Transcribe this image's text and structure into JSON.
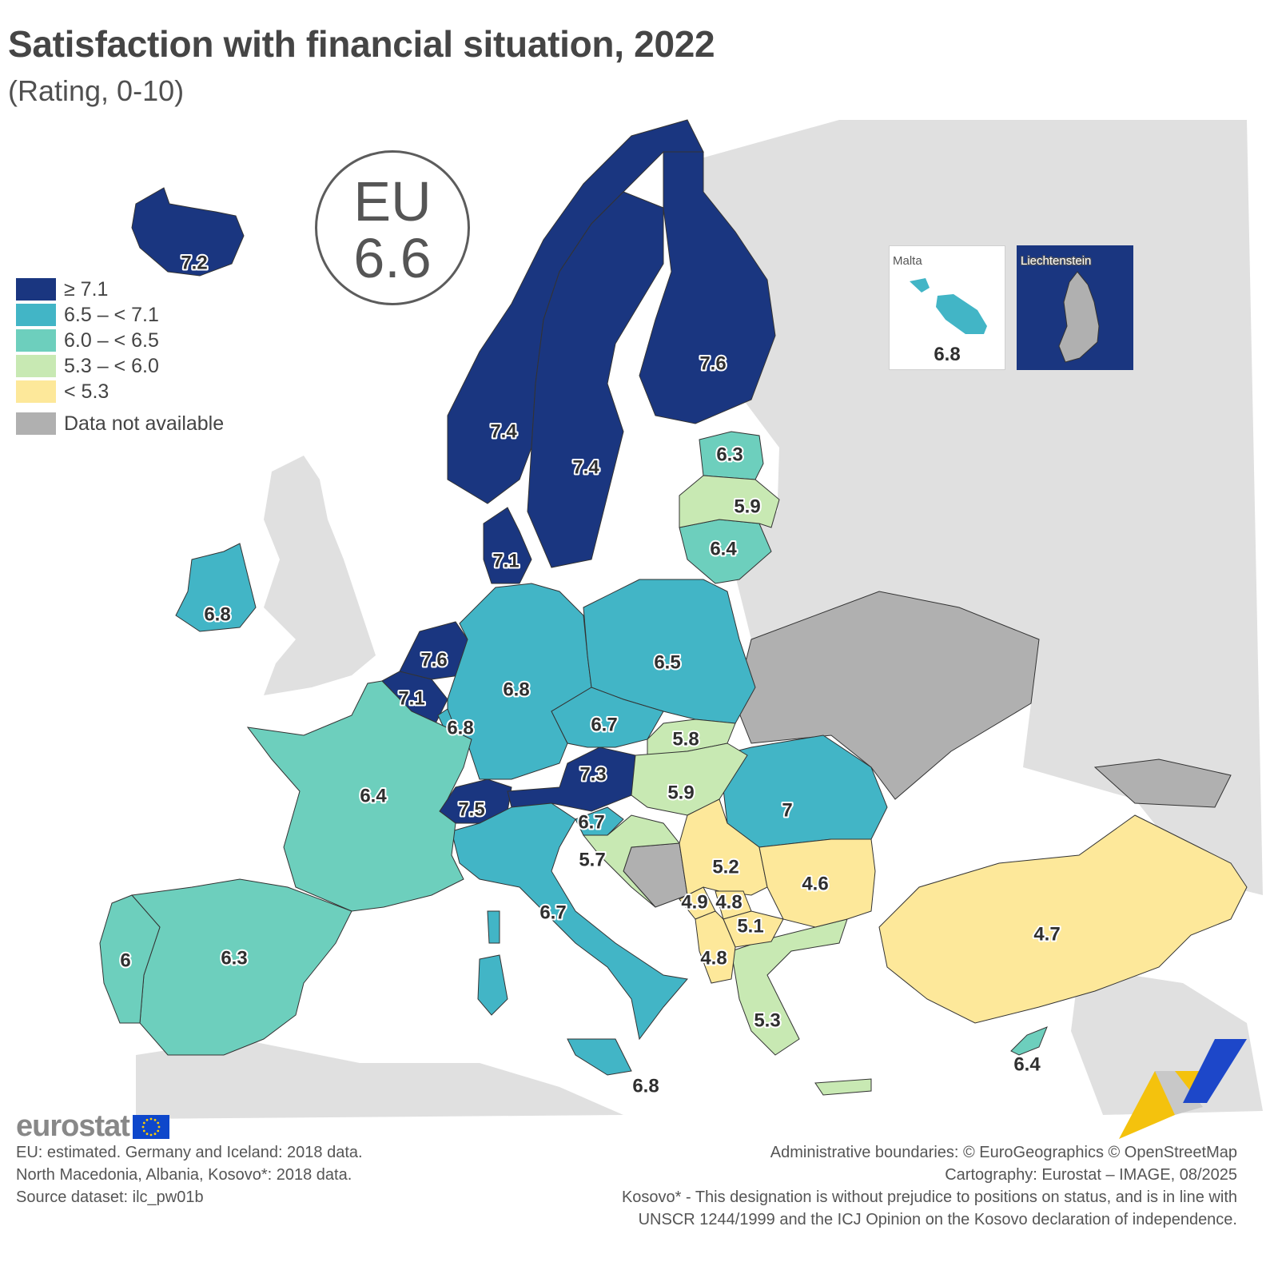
{
  "title": "Satisfaction with financial situation, 2022",
  "subtitle": "(Rating, 0-10)",
  "eu_badge": {
    "label": "EU",
    "value": "6.6"
  },
  "legend": [
    {
      "label": "≥ 7.1",
      "color": "#1a3680"
    },
    {
      "label": "6.5 – < 7.1",
      "color": "#42b5c6"
    },
    {
      "label": "6.0 – < 6.5",
      "color": "#6dcfbd"
    },
    {
      "label": "5.3 – < 6.0",
      "color": "#c8e9b3"
    },
    {
      "label": "< 5.3",
      "color": "#fde89a"
    },
    {
      "label": "Data not available",
      "color": "#b0b0b0"
    }
  ],
  "countries": [
    {
      "name": "Iceland",
      "value": "7.2"
    },
    {
      "name": "Norway",
      "value": "7.4"
    },
    {
      "name": "Sweden",
      "value": "7.4"
    },
    {
      "name": "Finland",
      "value": "7.6"
    },
    {
      "name": "Estonia",
      "value": "6.3"
    },
    {
      "name": "Latvia",
      "value": "5.9"
    },
    {
      "name": "Lithuania",
      "value": "6.4"
    },
    {
      "name": "Denmark",
      "value": "7.1"
    },
    {
      "name": "Ireland",
      "value": "6.8"
    },
    {
      "name": "Netherlands",
      "value": "7.6"
    },
    {
      "name": "Belgium",
      "value": "7.1"
    },
    {
      "name": "Luxembourg",
      "value": "6.8"
    },
    {
      "name": "Germany",
      "value": "6.8"
    },
    {
      "name": "Poland",
      "value": "6.5"
    },
    {
      "name": "Czechia",
      "value": "6.7"
    },
    {
      "name": "Slovakia",
      "value": "5.8"
    },
    {
      "name": "Austria",
      "value": "7.3"
    },
    {
      "name": "Hungary",
      "value": "5.9"
    },
    {
      "name": "Romania",
      "value": "7"
    },
    {
      "name": "France",
      "value": "6.4"
    },
    {
      "name": "Switzerland",
      "value": "7.5"
    },
    {
      "name": "Slovenia",
      "value": "6.7"
    },
    {
      "name": "Croatia",
      "value": "5.7"
    },
    {
      "name": "Serbia",
      "value": "5.2"
    },
    {
      "name": "Bulgaria",
      "value": "4.6"
    },
    {
      "name": "Montenegro",
      "value": "4.9"
    },
    {
      "name": "Kosovo",
      "value": "4.8"
    },
    {
      "name": "North Macedonia",
      "value": "5.1"
    },
    {
      "name": "Albania",
      "value": "4.8"
    },
    {
      "name": "Italy",
      "value": "6.7"
    },
    {
      "name": "Spain",
      "value": "6.3"
    },
    {
      "name": "Portugal",
      "value": "6"
    },
    {
      "name": "Greece",
      "value": "5.3"
    },
    {
      "name": "Türkiye",
      "value": "4.7"
    },
    {
      "name": "Cyprus",
      "value": "6.4"
    },
    {
      "name": "Malta",
      "value": "6.8"
    }
  ],
  "insets": {
    "malta": {
      "title": "Malta",
      "value": "6.8"
    },
    "liechtenstein": {
      "title": "Liechtenstein"
    }
  },
  "logo": "eurostat",
  "footer_left": [
    "EU: estimated. Germany and Iceland: 2018 data.",
    "North Macedonia, Albania, Kosovo*: 2018 data.",
    "Source dataset: ilc_pw01b"
  ],
  "footer_right": [
    "Administrative boundaries: © EuroGeographics © OpenStreetMap",
    "Cartography: Eurostat – IMAGE, 08/2025",
    "Kosovo* - This designation is without prejudice to positions on status, and is in line with",
    "UNSCR 1244/1999 and the ICJ Opinion on the Kosovo declaration of independence."
  ]
}
